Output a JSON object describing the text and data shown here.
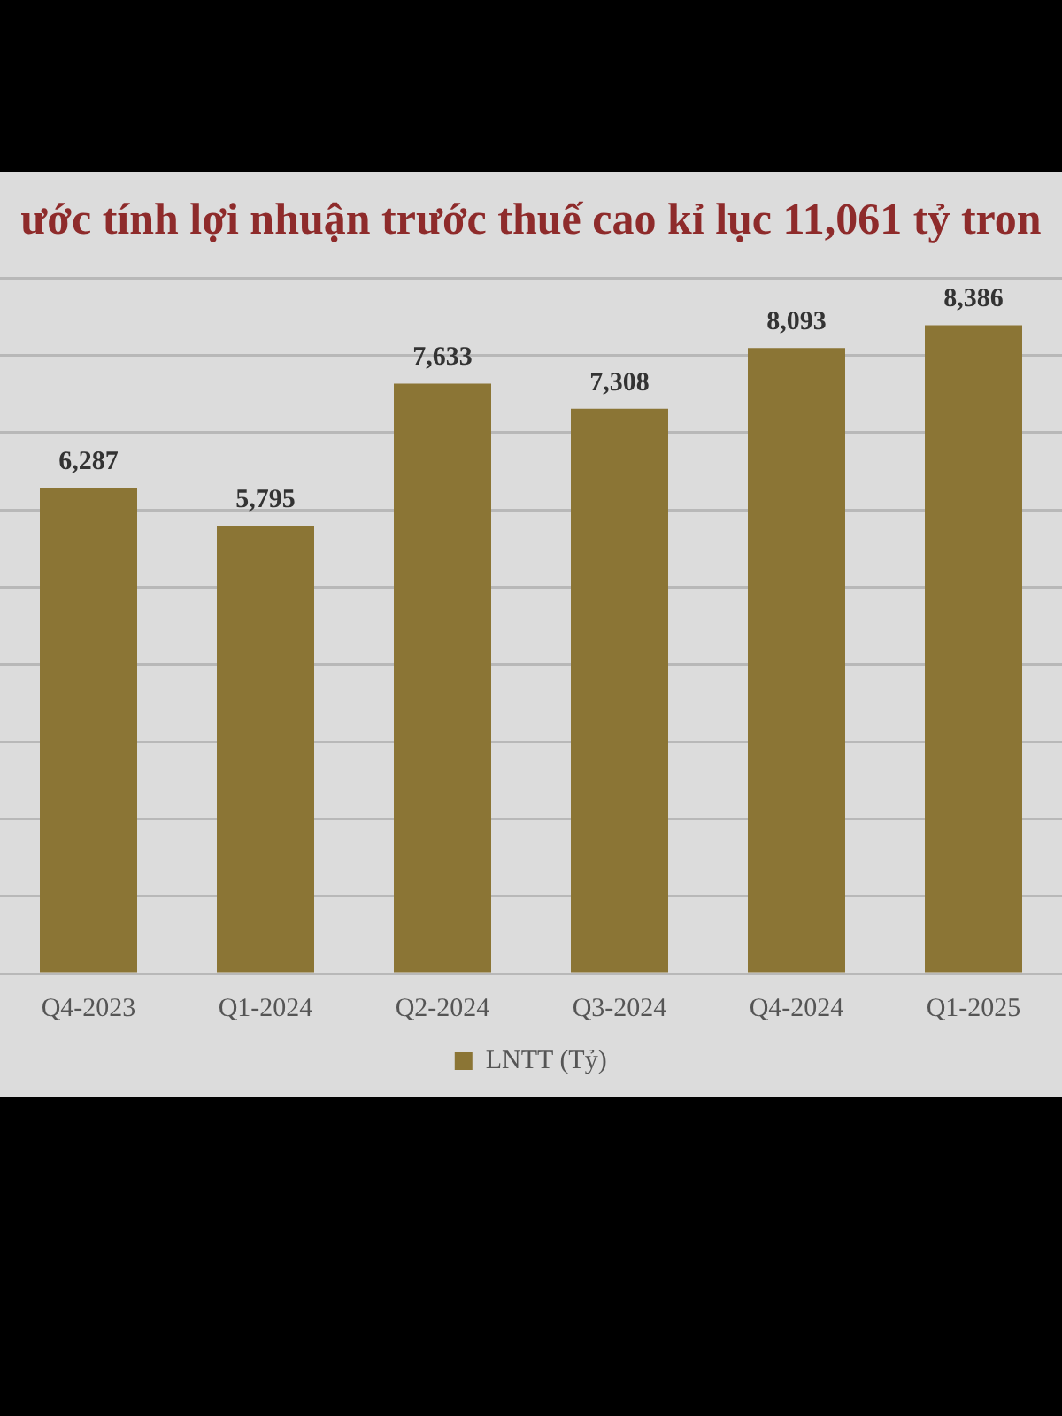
{
  "chart_data": {
    "type": "bar",
    "title": "ước tính lợi nhuận trước thuế cao kỉ lục 11,061 tỷ tron",
    "categories": [
      "Q4-2023",
      "Q1-2024",
      "Q2-2024",
      "Q3-2024",
      "Q4-2024",
      "Q1-2025"
    ],
    "series": [
      {
        "name": "LNTT (Tỷ)",
        "color": "#8b7535",
        "values": [
          6287,
          5795,
          7633,
          7308,
          8093,
          8386
        ],
        "value_labels": [
          "6,287",
          "5,795",
          "7,633",
          "7,308",
          "8,093",
          "8,386"
        ]
      }
    ],
    "tick_labels": "x",
    "grid": "y",
    "legend": "bottom"
  }
}
